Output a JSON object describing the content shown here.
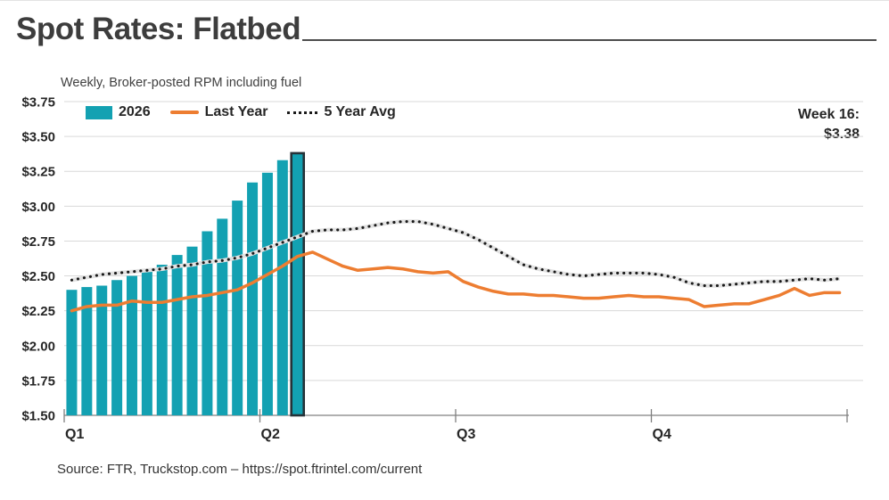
{
  "header": {
    "title": "Spot Rates: Flatbed",
    "subtitle": "Weekly, Broker-posted RPM including fuel"
  },
  "legend": {
    "items": [
      {
        "label": "2026",
        "swatch": "bar"
      },
      {
        "label": "Last Year",
        "swatch": "line"
      },
      {
        "label": "5 Year Avg",
        "swatch": "dotted"
      }
    ],
    "position": "top-left-inside"
  },
  "annotation": {
    "line1": "Week 16:",
    "line2": "$3.38"
  },
  "source": "Source: FTR, Truckstop.com – https://spot.ftrintel.com/current",
  "colors": {
    "bar": "#13a1b2",
    "highlight_border": "#263238",
    "last_year": "#ed7d31",
    "five_year_avg": "#1a1a1a",
    "five_year_avg_halo": "#e2e2e2",
    "gridline": "#d9d9d9",
    "axis": "#808080",
    "title_text": "#3d3d3d"
  },
  "chart_data": {
    "type": "combo",
    "title": "Spot Rates: Flatbed",
    "subtitle": "Weekly, Broker-posted RPM including fuel",
    "x_unit": "week",
    "weeks": 52,
    "ylim": [
      1.5,
      3.75
    ],
    "grid": true,
    "y_ticks": [
      {
        "label": "$3.75",
        "value": 3.75
      },
      {
        "label": "$3.50",
        "value": 3.5
      },
      {
        "label": "$3.25",
        "value": 3.25
      },
      {
        "label": "$3.00",
        "value": 3.0
      },
      {
        "label": "$2.75",
        "value": 2.75
      },
      {
        "label": "$2.50",
        "value": 2.5
      },
      {
        "label": "$2.25",
        "value": 2.25
      },
      {
        "label": "$2.00",
        "value": 2.0
      },
      {
        "label": "$1.75",
        "value": 1.75
      },
      {
        "label": "$1.50",
        "value": 1.5
      }
    ],
    "x_ticks": [
      {
        "label": "Q1",
        "week": 1
      },
      {
        "label": "Q2",
        "week": 14
      },
      {
        "label": "Q3",
        "week": 27
      },
      {
        "label": "Q4",
        "week": 40
      }
    ],
    "end_tick_week": 53,
    "series": [
      {
        "name": "2026",
        "type": "bar",
        "color": "#13a1b2",
        "highlight_last": true,
        "values": [
          2.4,
          2.42,
          2.43,
          2.47,
          2.5,
          2.54,
          2.58,
          2.65,
          2.71,
          2.82,
          2.91,
          3.04,
          3.17,
          3.24,
          3.33,
          3.38
        ]
      },
      {
        "name": "Last Year",
        "type": "line",
        "color": "#ed7d31",
        "values": [
          2.25,
          2.28,
          2.29,
          2.29,
          2.32,
          2.31,
          2.31,
          2.33,
          2.35,
          2.36,
          2.38,
          2.4,
          2.45,
          2.51,
          2.57,
          2.64,
          2.67,
          2.62,
          2.57,
          2.54,
          2.55,
          2.56,
          2.55,
          2.53,
          2.52,
          2.53,
          2.46,
          2.42,
          2.39,
          2.37,
          2.37,
          2.36,
          2.36,
          2.35,
          2.34,
          2.34,
          2.35,
          2.36,
          2.35,
          2.35,
          2.34,
          2.33,
          2.28,
          2.29,
          2.3,
          2.3,
          2.33,
          2.36,
          2.41,
          2.36,
          2.38,
          2.38
        ]
      },
      {
        "name": "5 Year Avg",
        "type": "dotted-line",
        "color": "#1a1a1a",
        "halo_color": "#e2e2e2",
        "values": [
          2.47,
          2.49,
          2.51,
          2.52,
          2.53,
          2.54,
          2.55,
          2.57,
          2.58,
          2.6,
          2.61,
          2.63,
          2.66,
          2.7,
          2.74,
          2.78,
          2.82,
          2.83,
          2.83,
          2.84,
          2.86,
          2.88,
          2.89,
          2.89,
          2.87,
          2.84,
          2.81,
          2.76,
          2.7,
          2.64,
          2.58,
          2.55,
          2.53,
          2.51,
          2.5,
          2.51,
          2.52,
          2.52,
          2.52,
          2.51,
          2.49,
          2.45,
          2.43,
          2.43,
          2.44,
          2.45,
          2.46,
          2.46,
          2.47,
          2.48,
          2.47,
          2.48
        ]
      }
    ],
    "annotation": {
      "text": "Week 16: $3.38",
      "week": 16,
      "value": 3.38
    }
  }
}
